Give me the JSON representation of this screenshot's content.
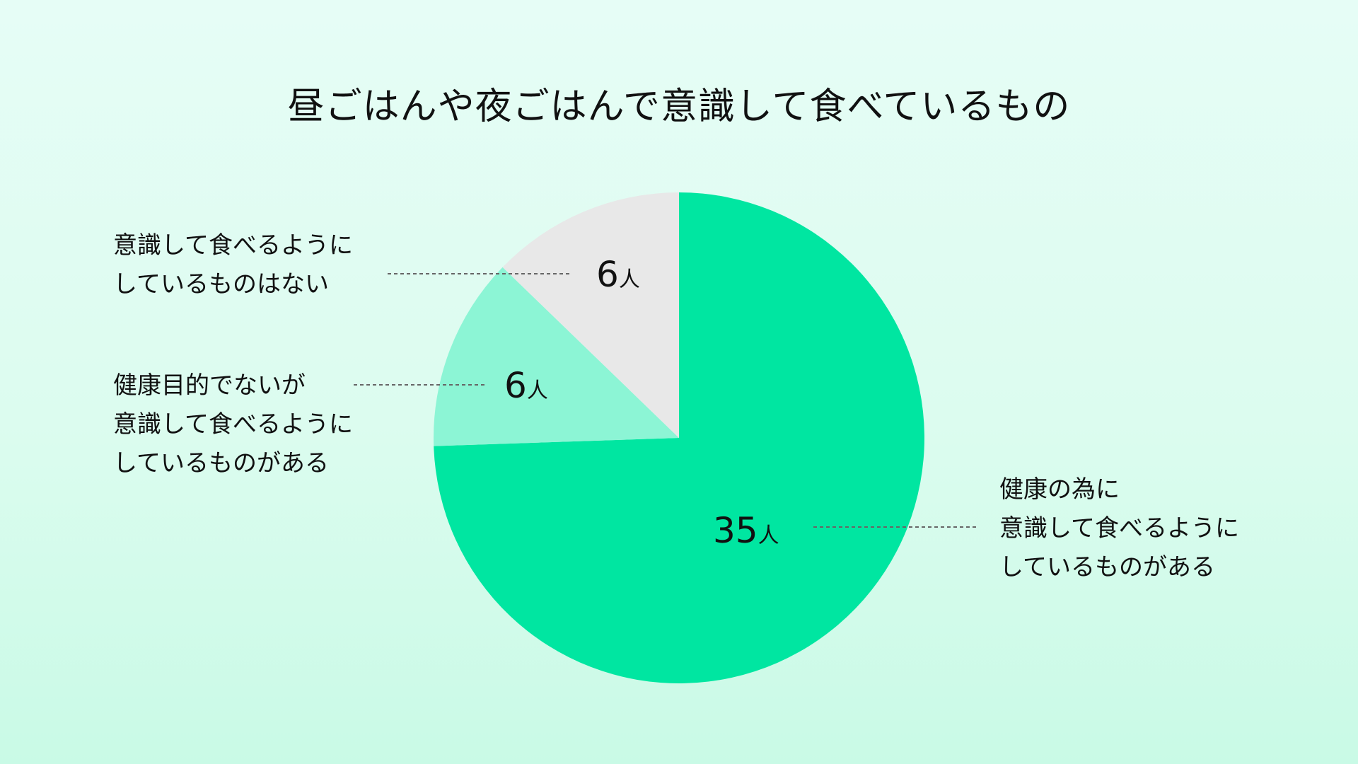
{
  "chart_data": {
    "type": "pie",
    "title": "昼ごはんや夜ごはんで意識して食べているもの",
    "unit": "人",
    "slices": [
      {
        "label_lines": [
          "健康の為に",
          "意識して食べるように",
          "しているものがある"
        ],
        "value": 35,
        "color": "#00e6a1"
      },
      {
        "label_lines": [
          "健康目的でないが",
          "意識して食べるように",
          "しているものがある"
        ],
        "value": 6,
        "color": "#8cf5d5"
      },
      {
        "label_lines": [
          "意識して食べるように",
          "しているものはない"
        ],
        "value": 6,
        "color": "#e8e8e8"
      }
    ]
  }
}
